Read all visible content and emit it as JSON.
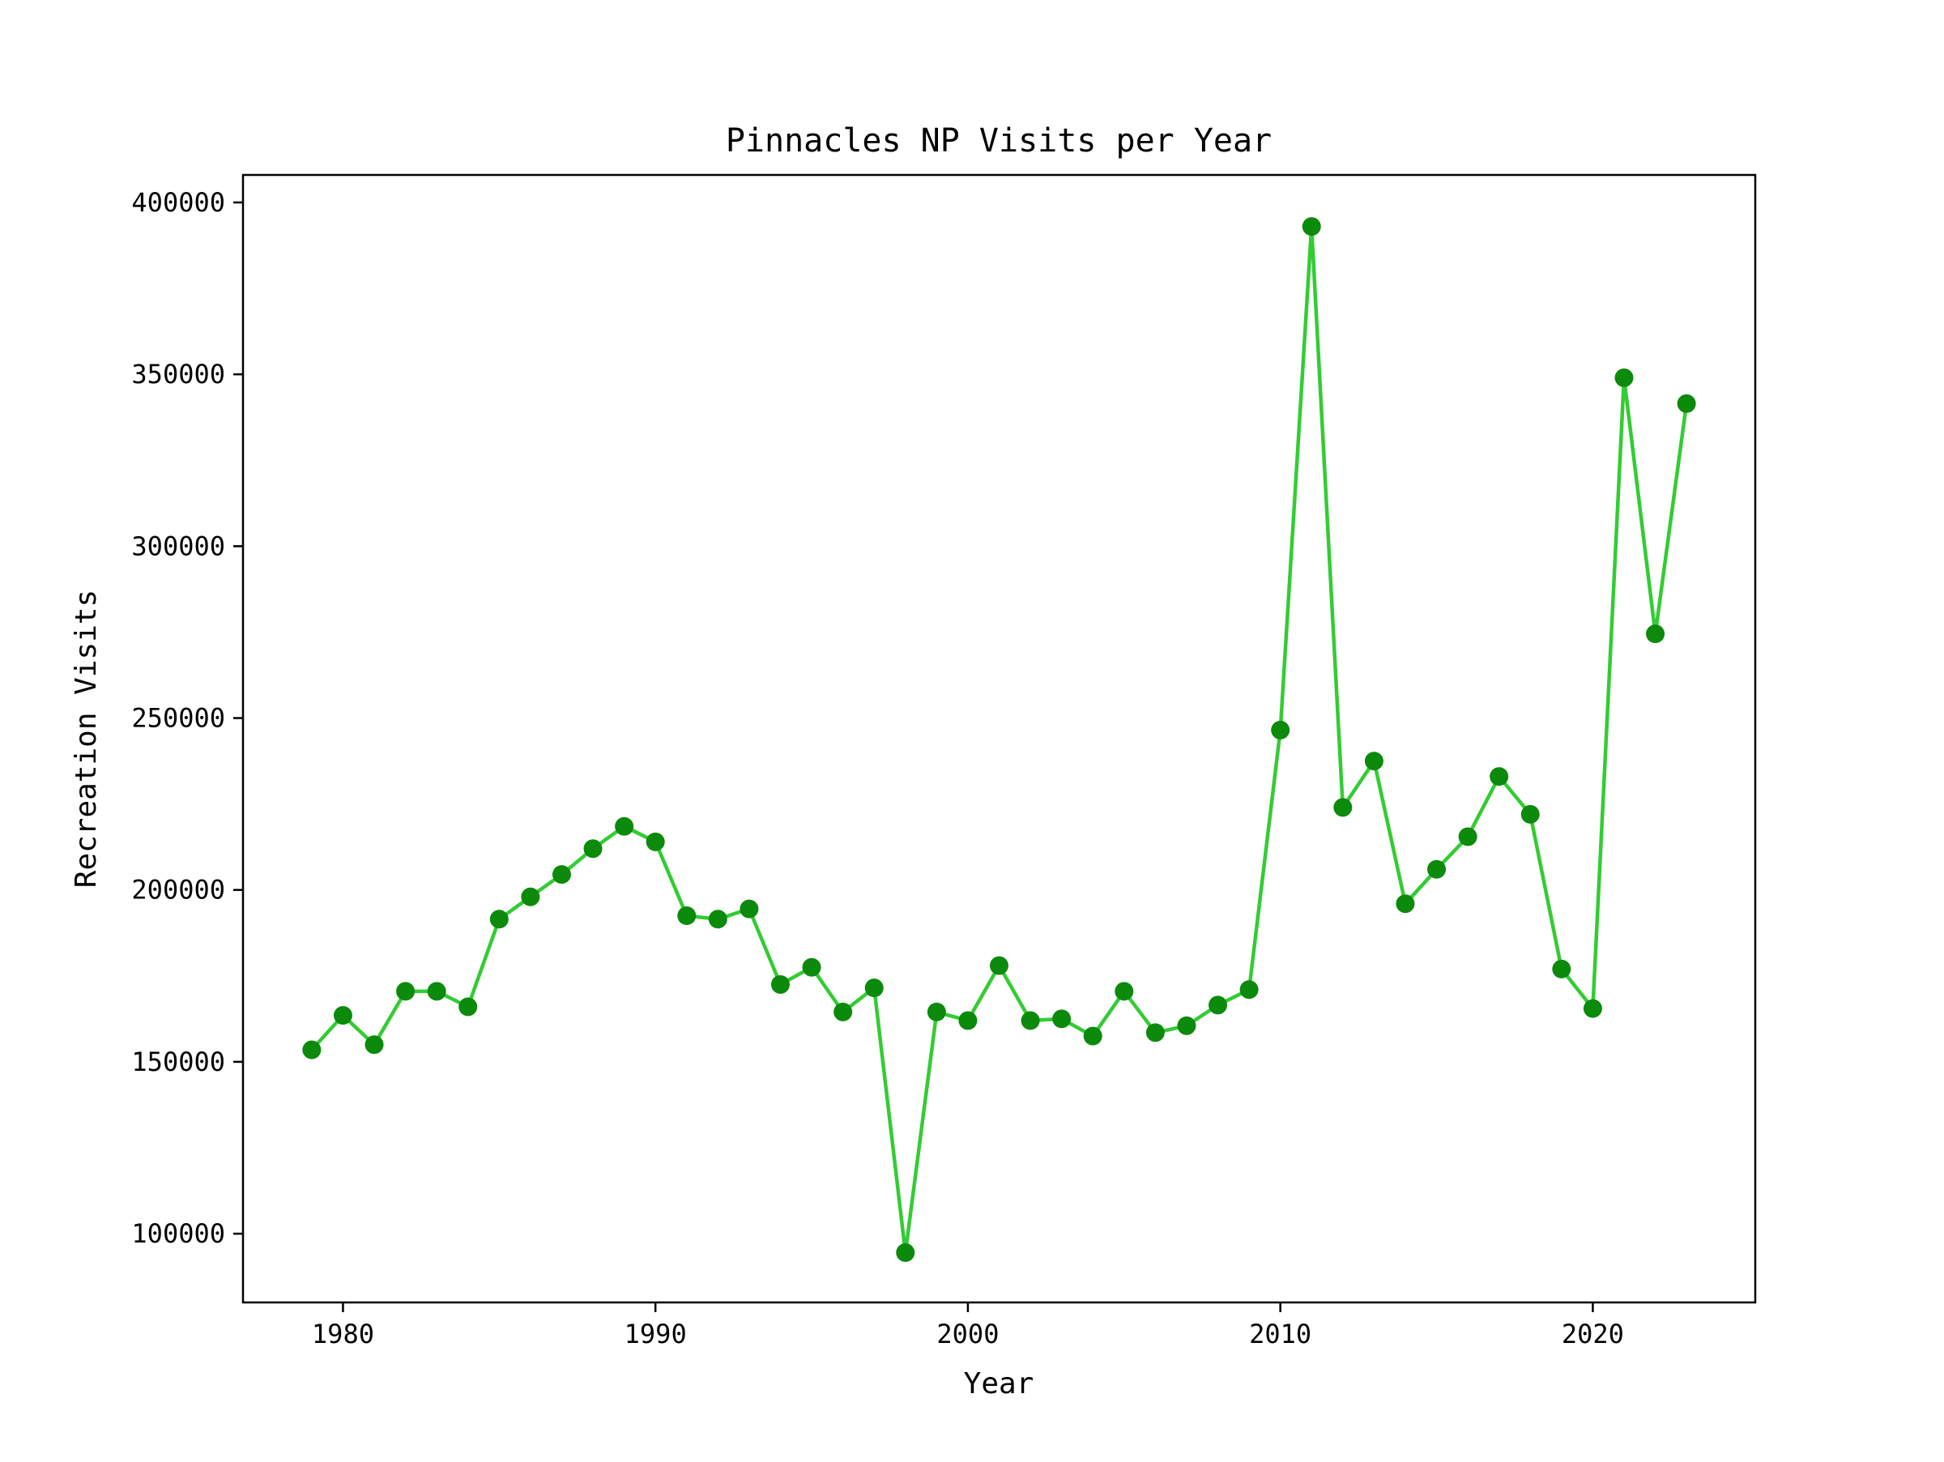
{
  "colors": {
    "line": "#33cc33",
    "marker": "#0b8a0b",
    "axis": "#000000",
    "background": "#ffffff"
  },
  "chart_data": {
    "type": "line",
    "title": "Pinnacles NP Visits per Year",
    "xlabel": "Year",
    "ylabel": "Recreation Visits",
    "xlim": [
      1976.8,
      2025.2
    ],
    "ylim": [
      80000,
      408000
    ],
    "xticks": [
      1980,
      1990,
      2000,
      2010,
      2020
    ],
    "xtick_labels": [
      "1980",
      "1990",
      "2000",
      "2010",
      "2020"
    ],
    "yticks": [
      100000,
      150000,
      200000,
      250000,
      300000,
      350000,
      400000
    ],
    "ytick_labels": [
      "100000",
      "150000",
      "200000",
      "250000",
      "300000",
      "350000",
      "400000"
    ],
    "grid": false,
    "series": [
      {
        "markers": true,
        "x": [
          1979,
          1980,
          1981,
          1982,
          1983,
          1984,
          1985,
          1986,
          1987,
          1988,
          1989,
          1990,
          1991,
          1992,
          1993,
          1994,
          1995,
          1996,
          1997,
          1998,
          1999,
          2000,
          2001,
          2002,
          2003,
          2004,
          2005,
          2006,
          2007,
          2008,
          2009,
          2010,
          2011,
          2012,
          2013,
          2014,
          2015,
          2016,
          2017,
          2018,
          2019,
          2020,
          2021,
          2022,
          2023
        ],
        "y": [
          153500,
          163500,
          155000,
          170500,
          170500,
          166000,
          191500,
          198000,
          204500,
          212000,
          218500,
          214000,
          192500,
          191500,
          194500,
          172500,
          177500,
          164500,
          171500,
          94500,
          164500,
          162000,
          178000,
          162000,
          162500,
          157500,
          170500,
          158500,
          160500,
          166500,
          171000,
          246500,
          393000,
          224000,
          237500,
          196000,
          206000,
          215500,
          233000,
          222000,
          177000,
          165500,
          349000,
          274500,
          341500
        ]
      }
    ]
  }
}
